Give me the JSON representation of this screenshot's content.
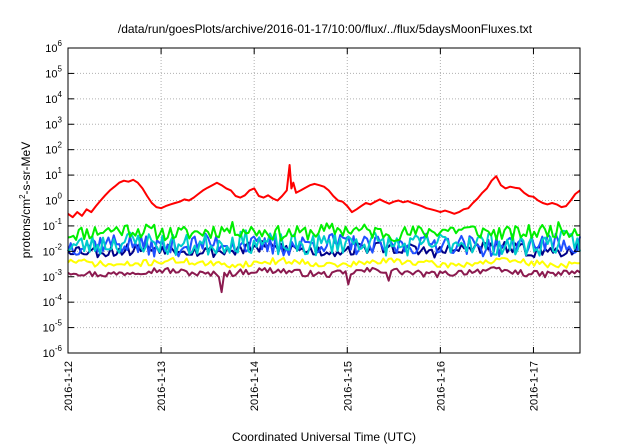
{
  "chart_data": {
    "type": "line",
    "title": "/data/run/goesPlots/archive/2016-01-17/10:00/flux/../flux/5daysMoonFluxes.txt",
    "xlabel": "Coordinated Universal Time (UTC)",
    "ylabel": {
      "prefix": "protons/cm",
      "superscript": "2",
      "suffix": "-s-sr-MeV"
    },
    "y_scale": "log",
    "ylim": [
      1e-06,
      1000000.0
    ],
    "xlim": [
      0,
      5.5
    ],
    "grid": true,
    "y_ticks": [
      {
        "value": -6,
        "base": "10",
        "exp": "-6"
      },
      {
        "value": -5,
        "base": "10",
        "exp": "-5"
      },
      {
        "value": -4,
        "base": "10",
        "exp": "-4"
      },
      {
        "value": -3,
        "base": "10",
        "exp": "-3"
      },
      {
        "value": -2,
        "base": "10",
        "exp": "-2"
      },
      {
        "value": -1,
        "base": "10",
        "exp": "-1"
      },
      {
        "value": 0,
        "base": "10",
        "exp": "0"
      },
      {
        "value": 1,
        "base": "10",
        "exp": "1"
      },
      {
        "value": 2,
        "base": "10",
        "exp": "2"
      },
      {
        "value": 3,
        "base": "10",
        "exp": "3"
      },
      {
        "value": 4,
        "base": "10",
        "exp": "4"
      },
      {
        "value": 5,
        "base": "10",
        "exp": "5"
      },
      {
        "value": 6,
        "base": "10",
        "exp": "6"
      }
    ],
    "x_ticks": [
      {
        "value": 0,
        "label": "2016-1-12"
      },
      {
        "value": 1,
        "label": "2016-1-13"
      },
      {
        "value": 2,
        "label": "2016-1-14"
      },
      {
        "value": 3,
        "label": "2016-1-15"
      },
      {
        "value": 4,
        "label": "2016-1-16"
      },
      {
        "value": 5,
        "label": "2016-1-17"
      }
    ],
    "series": [
      {
        "color": "#ff0000",
        "width": 2,
        "points": [
          [
            0,
            0.3
          ],
          [
            0.05,
            0.22
          ],
          [
            0.1,
            0.35
          ],
          [
            0.15,
            0.25
          ],
          [
            0.2,
            0.45
          ],
          [
            0.25,
            0.35
          ],
          [
            0.3,
            0.6
          ],
          [
            0.35,
            1.0
          ],
          [
            0.4,
            1.6
          ],
          [
            0.45,
            2.5
          ],
          [
            0.5,
            3.5
          ],
          [
            0.55,
            5
          ],
          [
            0.6,
            6
          ],
          [
            0.65,
            5.5
          ],
          [
            0.7,
            6.5
          ],
          [
            0.75,
            5
          ],
          [
            0.8,
            3
          ],
          [
            0.85,
            1.5
          ],
          [
            0.9,
            0.8
          ],
          [
            0.95,
            0.55
          ],
          [
            1.0,
            0.5
          ],
          [
            1.05,
            0.6
          ],
          [
            1.1,
            0.7
          ],
          [
            1.15,
            0.8
          ],
          [
            1.2,
            0.9
          ],
          [
            1.25,
            1.1
          ],
          [
            1.3,
            1.0
          ],
          [
            1.35,
            1.3
          ],
          [
            1.4,
            1.8
          ],
          [
            1.45,
            2.5
          ],
          [
            1.5,
            3.2
          ],
          [
            1.55,
            4
          ],
          [
            1.6,
            5
          ],
          [
            1.65,
            4
          ],
          [
            1.7,
            3
          ],
          [
            1.75,
            2.5
          ],
          [
            1.8,
            1.5
          ],
          [
            1.85,
            1.3
          ],
          [
            1.9,
            1.6
          ],
          [
            1.95,
            2.5
          ],
          [
            2.0,
            3
          ],
          [
            2.05,
            1.5
          ],
          [
            2.1,
            1.3
          ],
          [
            2.15,
            1.6
          ],
          [
            2.2,
            1.2
          ],
          [
            2.25,
            1.0
          ],
          [
            2.3,
            1.5
          ],
          [
            2.35,
            2.5
          ],
          [
            2.38,
            25
          ],
          [
            2.4,
            3
          ],
          [
            2.42,
            5
          ],
          [
            2.45,
            2
          ],
          [
            2.5,
            2.5
          ],
          [
            2.55,
            3.2
          ],
          [
            2.6,
            4
          ],
          [
            2.65,
            4.5
          ],
          [
            2.7,
            4
          ],
          [
            2.75,
            3.5
          ],
          [
            2.8,
            2.5
          ],
          [
            2.85,
            1.5
          ],
          [
            2.9,
            1.0
          ],
          [
            2.95,
            0.9
          ],
          [
            3.0,
            0.6
          ],
          [
            3.05,
            0.35
          ],
          [
            3.1,
            0.45
          ],
          [
            3.15,
            0.6
          ],
          [
            3.2,
            0.8
          ],
          [
            3.25,
            0.7
          ],
          [
            3.3,
            0.9
          ],
          [
            3.35,
            1.1
          ],
          [
            3.4,
            0.9
          ],
          [
            3.45,
            0.75
          ],
          [
            3.5,
            0.9
          ],
          [
            3.55,
            1.0
          ],
          [
            3.6,
            0.85
          ],
          [
            3.65,
            0.95
          ],
          [
            3.7,
            0.8
          ],
          [
            3.75,
            0.7
          ],
          [
            3.8,
            0.6
          ],
          [
            3.85,
            0.5
          ],
          [
            3.9,
            0.45
          ],
          [
            3.95,
            0.4
          ],
          [
            4.0,
            0.35
          ],
          [
            4.05,
            0.4
          ],
          [
            4.1,
            0.35
          ],
          [
            4.15,
            0.3
          ],
          [
            4.2,
            0.35
          ],
          [
            4.25,
            0.45
          ],
          [
            4.3,
            0.5
          ],
          [
            4.35,
            0.8
          ],
          [
            4.4,
            1.2
          ],
          [
            4.45,
            2
          ],
          [
            4.5,
            3
          ],
          [
            4.55,
            6
          ],
          [
            4.6,
            9
          ],
          [
            4.65,
            4
          ],
          [
            4.7,
            3
          ],
          [
            4.75,
            3.5
          ],
          [
            4.8,
            3.2
          ],
          [
            4.85,
            3
          ],
          [
            4.9,
            2
          ],
          [
            4.95,
            1.5
          ],
          [
            5.0,
            1.4
          ],
          [
            5.05,
            1.0
          ],
          [
            5.1,
            0.8
          ],
          [
            5.15,
            0.7
          ],
          [
            5.2,
            0.8
          ],
          [
            5.25,
            0.7
          ],
          [
            5.3,
            0.55
          ],
          [
            5.35,
            0.6
          ],
          [
            5.4,
            1.0
          ],
          [
            5.45,
            1.8
          ],
          [
            5.5,
            2.5
          ]
        ]
      },
      {
        "color": "#00ee00",
        "width": 2,
        "base": 0.06,
        "amp": 0.6,
        "seed": 11
      },
      {
        "color": "#00cccc",
        "width": 2,
        "base": 0.02,
        "amp": 0.9,
        "seed": 23
      },
      {
        "color": "#1f4fff",
        "width": 2,
        "base": 0.018,
        "amp": 0.8,
        "seed": 37
      },
      {
        "color": "#000088",
        "width": 2,
        "base": 0.012,
        "amp": 0.5,
        "seed": 53
      },
      {
        "color": "#ffff00",
        "width": 2,
        "base": 0.0035,
        "amp": 0.25,
        "seed": 71
      },
      {
        "color": "#8b1a4f",
        "width": 2,
        "base": 0.0015,
        "amp": 0.25,
        "seed": 97,
        "dips": [
          [
            1.65,
            0.00025
          ],
          [
            3.0,
            0.0005
          ],
          [
            3.45,
            0.0007
          ]
        ]
      }
    ]
  }
}
